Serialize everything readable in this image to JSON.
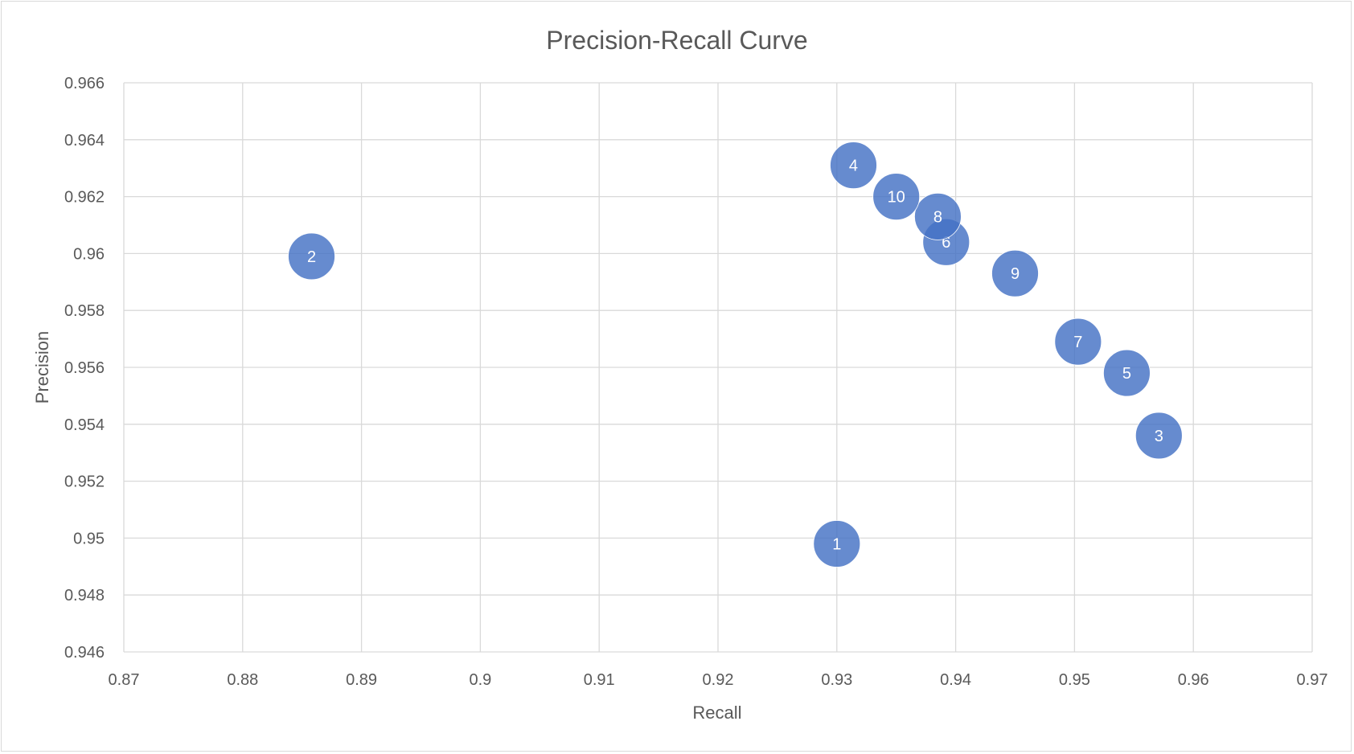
{
  "chart_data": {
    "type": "scatter",
    "title": "Precision-Recall Curve",
    "xlabel": "Recall",
    "ylabel": "Precision",
    "xlim": [
      0.87,
      0.97
    ],
    "ylim": [
      0.946,
      0.966
    ],
    "xticks": [
      "0.87",
      "0.88",
      "0.89",
      "0.9",
      "0.91",
      "0.92",
      "0.93",
      "0.94",
      "0.95",
      "0.96",
      "0.97"
    ],
    "yticks": [
      "0.966",
      "0.964",
      "0.962",
      "0.96",
      "0.958",
      "0.956",
      "0.954",
      "0.952",
      "0.95",
      "0.948",
      "0.946"
    ],
    "grid": true,
    "legend": "none",
    "color": "#4472c4",
    "points": [
      {
        "label": "1",
        "x": 0.93,
        "y": 0.9498
      },
      {
        "label": "2",
        "x": 0.8858,
        "y": 0.9599
      },
      {
        "label": "3",
        "x": 0.9571,
        "y": 0.9536
      },
      {
        "label": "4",
        "x": 0.9314,
        "y": 0.9631
      },
      {
        "label": "5",
        "x": 0.9544,
        "y": 0.9558
      },
      {
        "label": "6",
        "x": 0.9392,
        "y": 0.9604
      },
      {
        "label": "7",
        "x": 0.9503,
        "y": 0.9569
      },
      {
        "label": "8",
        "x": 0.9385,
        "y": 0.9613
      },
      {
        "label": "9",
        "x": 0.945,
        "y": 0.9593
      },
      {
        "label": "10",
        "x": 0.935,
        "y": 0.962
      }
    ]
  }
}
